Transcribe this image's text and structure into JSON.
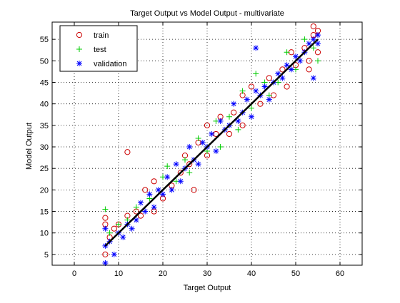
{
  "chart_data": {
    "type": "scatter",
    "title": "Target Output vs Model Output - multivariate",
    "xlabel": "Target Output",
    "ylabel": "Model Output",
    "xlim": [
      -5,
      65
    ],
    "ylim": [
      2.5,
      59
    ],
    "xticks": [
      "0",
      "10",
      "20",
      "30",
      "40",
      "50",
      "60"
    ],
    "yticks": [
      "5",
      "10",
      "15",
      "20",
      "25",
      "30",
      "35",
      "40",
      "45",
      "50",
      "55"
    ],
    "grid": true,
    "legend_position": "top-left",
    "fit_line": {
      "from": [
        7,
        7
      ],
      "to": [
        55,
        55
      ],
      "color": "#000000"
    },
    "series": [
      {
        "name": "train",
        "marker": "circle",
        "color": "#cc0000",
        "points": [
          [
            7,
            5
          ],
          [
            7,
            13.5
          ],
          [
            7,
            12
          ],
          [
            8,
            9
          ],
          [
            9,
            11
          ],
          [
            10,
            12
          ],
          [
            12,
            28.8
          ],
          [
            12,
            14
          ],
          [
            14,
            15
          ],
          [
            15,
            14
          ],
          [
            16,
            20
          ],
          [
            18,
            15
          ],
          [
            18,
            22
          ],
          [
            20,
            18
          ],
          [
            22,
            21
          ],
          [
            24,
            24
          ],
          [
            25,
            28
          ],
          [
            26,
            26
          ],
          [
            27,
            20
          ],
          [
            28,
            31
          ],
          [
            30,
            28
          ],
          [
            30,
            35
          ],
          [
            32,
            33
          ],
          [
            33,
            37
          ],
          [
            35,
            33
          ],
          [
            36,
            38
          ],
          [
            38,
            35
          ],
          [
            38,
            42
          ],
          [
            40,
            44
          ],
          [
            42,
            40
          ],
          [
            44,
            46
          ],
          [
            45,
            42
          ],
          [
            47,
            48
          ],
          [
            48,
            44
          ],
          [
            49,
            52
          ],
          [
            50,
            49
          ],
          [
            52,
            53
          ],
          [
            53,
            50
          ],
          [
            54,
            56
          ],
          [
            54,
            58
          ],
          [
            55,
            57
          ],
          [
            55,
            52
          ],
          [
            53,
            48
          ]
        ]
      },
      {
        "name": "test",
        "marker": "plus",
        "color": "#00cc00",
        "points": [
          [
            7,
            15.5
          ],
          [
            8,
            10
          ],
          [
            10,
            12
          ],
          [
            12,
            13
          ],
          [
            14,
            16
          ],
          [
            17,
            18
          ],
          [
            20,
            23
          ],
          [
            21,
            25.5
          ],
          [
            23,
            22
          ],
          [
            25,
            27
          ],
          [
            26,
            24
          ],
          [
            28,
            32
          ],
          [
            30,
            29
          ],
          [
            32,
            36
          ],
          [
            33,
            30
          ],
          [
            35,
            37
          ],
          [
            37,
            34
          ],
          [
            38,
            43
          ],
          [
            40,
            39
          ],
          [
            41,
            47
          ],
          [
            43,
            45
          ],
          [
            44,
            42
          ],
          [
            46,
            45
          ],
          [
            48,
            52
          ],
          [
            50,
            48
          ],
          [
            52,
            55
          ],
          [
            54,
            53
          ],
          [
            55,
            50
          ]
        ]
      },
      {
        "name": "validation",
        "marker": "star",
        "color": "#0000ff",
        "points": [
          [
            7,
            3
          ],
          [
            7,
            7
          ],
          [
            7,
            11
          ],
          [
            8,
            8
          ],
          [
            9,
            5
          ],
          [
            10,
            10
          ],
          [
            11,
            9
          ],
          [
            12,
            12
          ],
          [
            13,
            11
          ],
          [
            14,
            13
          ],
          [
            15,
            17
          ],
          [
            16,
            15
          ],
          [
            17,
            19
          ],
          [
            18,
            16
          ],
          [
            19,
            20
          ],
          [
            20,
            19
          ],
          [
            21,
            23
          ],
          [
            22,
            20
          ],
          [
            23,
            26
          ],
          [
            24,
            22
          ],
          [
            25,
            25
          ],
          [
            26,
            30
          ],
          [
            27,
            27
          ],
          [
            28,
            26
          ],
          [
            29,
            31
          ],
          [
            30,
            30
          ],
          [
            31,
            33
          ],
          [
            32,
            29
          ],
          [
            33,
            36
          ],
          [
            34,
            34
          ],
          [
            35,
            35
          ],
          [
            36,
            40
          ],
          [
            37,
            36
          ],
          [
            38,
            38
          ],
          [
            39,
            41
          ],
          [
            40,
            37
          ],
          [
            41,
            53
          ],
          [
            41,
            43
          ],
          [
            42,
            42
          ],
          [
            43,
            44
          ],
          [
            44,
            41
          ],
          [
            45,
            45
          ],
          [
            46,
            47
          ],
          [
            47,
            46
          ],
          [
            48,
            49
          ],
          [
            49,
            48
          ],
          [
            50,
            51
          ],
          [
            51,
            50
          ],
          [
            52,
            52
          ],
          [
            53,
            54
          ],
          [
            54,
            46
          ],
          [
            54,
            55
          ],
          [
            55,
            54
          ],
          [
            55,
            56
          ]
        ]
      }
    ]
  }
}
